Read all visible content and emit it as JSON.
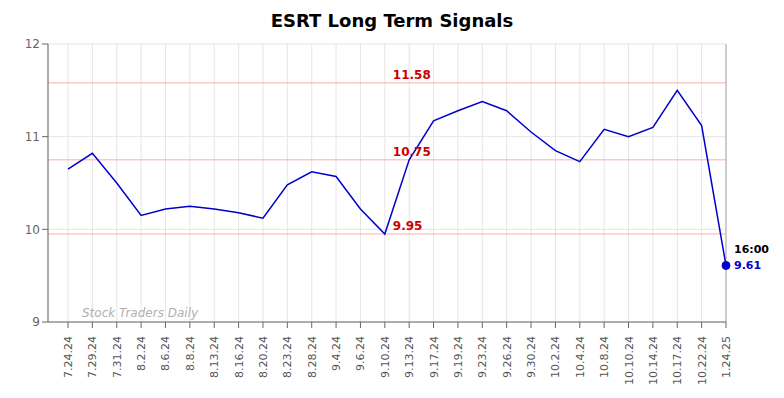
{
  "chart_data": {
    "type": "line",
    "title": "ESRT Long Term Signals",
    "categories": [
      "7.24.24",
      "7.29.24",
      "7.31.24",
      "8.2.24",
      "8.6.24",
      "8.8.24",
      "8.13.24",
      "8.16.24",
      "8.20.24",
      "8.23.24",
      "8.28.24",
      "9.4.24",
      "9.6.24",
      "9.10.24",
      "9.13.24",
      "9.17.24",
      "9.19.24",
      "9.23.24",
      "9.26.24",
      "9.30.24",
      "10.2.24",
      "10.4.24",
      "10.8.24",
      "10.10.24",
      "10.14.24",
      "10.17.24",
      "10.22.24",
      "1.24.25"
    ],
    "values": [
      10.65,
      10.82,
      10.5,
      10.15,
      10.22,
      10.25,
      10.22,
      10.18,
      10.12,
      10.48,
      10.62,
      10.57,
      10.22,
      9.95,
      10.75,
      11.17,
      11.28,
      11.38,
      11.28,
      11.05,
      10.85,
      10.73,
      11.08,
      11.0,
      11.1,
      11.5,
      11.12,
      9.61
    ],
    "color": "#0000cc",
    "end_dot_color": "#0000cc",
    "ylim": [
      9.0,
      12.0
    ],
    "yticks": [
      9,
      10,
      11,
      12
    ],
    "grid": true,
    "reference_lines": [
      {
        "value": 9.95,
        "color": "#ffaaaa"
      },
      {
        "value": 10.75,
        "color": "#ffaaaa"
      },
      {
        "value": 11.58,
        "color": "#ffaaaa"
      }
    ],
    "annotations": [
      {
        "text": "11.58",
        "x": "9.10.24",
        "y": 11.58,
        "color": "#cc0000"
      },
      {
        "text": "10.75",
        "x": "9.10.24",
        "y": 10.75,
        "color": "#cc0000"
      },
      {
        "text": "9.95",
        "x": "9.10.24",
        "y": 9.95,
        "color": "#cc0000"
      }
    ],
    "end_labels": [
      {
        "text": "16:00",
        "color": "#000000"
      },
      {
        "text": "9.61",
        "color": "#0000cc"
      }
    ],
    "watermark": {
      "text": "Stock Traders Daily",
      "color": "#b0b0b0"
    }
  }
}
